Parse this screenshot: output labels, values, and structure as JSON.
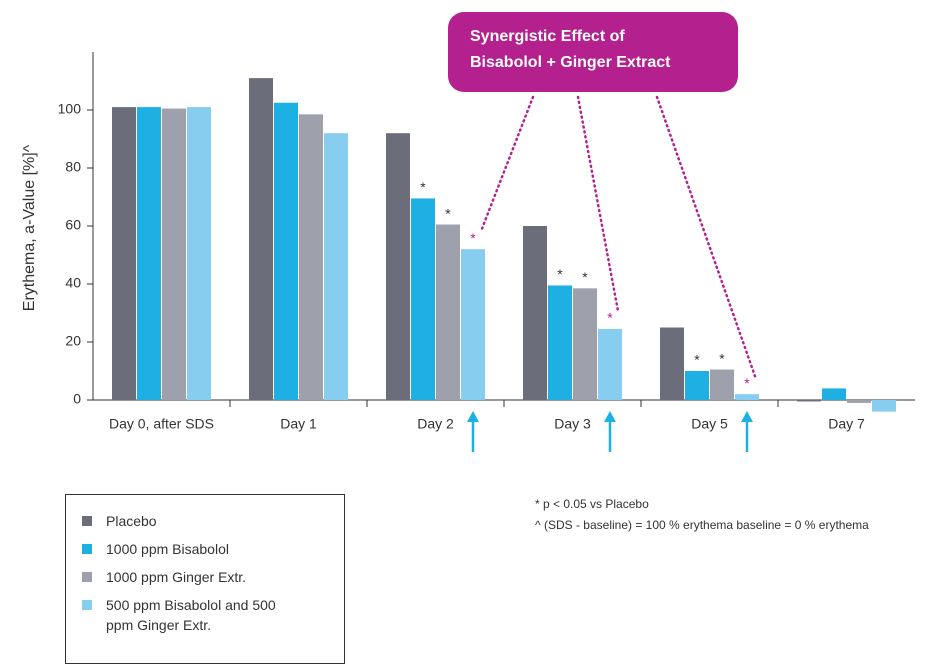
{
  "chart_data": {
    "type": "bar",
    "y_label": "Erythema, a-Value [%]^",
    "callout": [
      "Synergistic Effect of",
      "Bisabolol + Ginger Extract"
    ],
    "notes": [
      "* p < 0.05 vs Placebo",
      "^ (SDS - baseline) = 100 % erythema baseline = 0 % erythema"
    ],
    "categories": [
      "Day 0, after SDS",
      "Day 1",
      "Day 2",
      "Day 3",
      "Day 5",
      "Day 7"
    ],
    "series": [
      {
        "name": "Placebo",
        "color": "#6b6e7a",
        "values": [
          101,
          111,
          92,
          60,
          25,
          -0.5
        ]
      },
      {
        "name": "1000 ppm Bisabolol",
        "color": "#1fb0e3",
        "values": [
          101,
          102.5,
          69.5,
          39.5,
          10,
          4
        ],
        "value_labels": [
          null,
          null,
          "*",
          "*",
          "*",
          null
        ]
      },
      {
        "name": "1000 ppm Ginger Extr.",
        "color": "#9ea1ab",
        "values": [
          100.5,
          98.5,
          60.5,
          38.5,
          10.5,
          -1
        ],
        "value_labels": [
          null,
          null,
          "*",
          "*",
          "*",
          null
        ]
      },
      {
        "name": "500 ppm Bisabolol and 500 ppm Ginger Extr.",
        "color": "#86cdef",
        "values": [
          101,
          92,
          52,
          24.5,
          2,
          -4
        ],
        "value_labels": [
          null,
          null,
          "*",
          "*",
          "*",
          null
        ]
      }
    ],
    "ylim": [
      0,
      120
    ],
    "yticks": [
      0,
      20,
      40,
      60,
      80,
      100
    ],
    "grid": false
  }
}
